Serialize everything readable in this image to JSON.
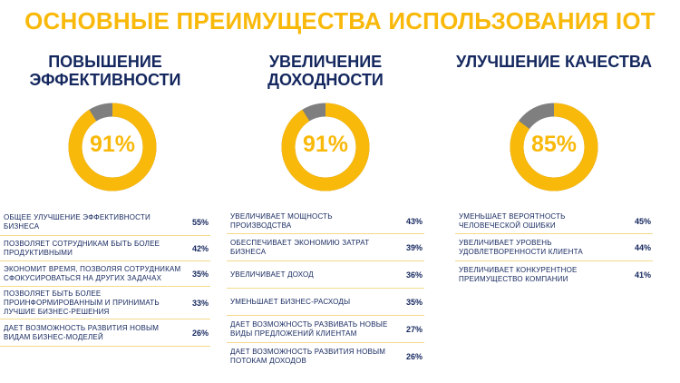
{
  "title": "ОСНОВНЫЕ ПРЕИМУЩЕСТВА ИСПОЛЬЗОВАНИЯ IOT",
  "colors": {
    "accent": "#F9B90B",
    "remainder": "#7F7F7F",
    "text": "#14275E",
    "divider": "#F3D98A"
  },
  "chart_data": [
    {
      "type": "pie",
      "title": "ПОВЫШЕНИЕ ЭФФЕКТИВНОСТИ",
      "value": 91,
      "value_label": "91%",
      "items": [
        {
          "label": "ОБЩЕЕ УЛУЧШЕНИЕ ЭФФЕКТИВНОСТИ БИЗНЕСА",
          "value": 55,
          "pct": "55%"
        },
        {
          "label": "ПОЗВОЛЯЕТ СОТРУДНИКАМ БЫТЬ БОЛЕЕ ПРОДУКТИВНЫМИ",
          "value": 42,
          "pct": "42%"
        },
        {
          "label": "ЭКОНОМИТ ВРЕМЯ, ПОЗВОЛЯЯ СОТРУДНИКАМ СФОКУСИРОВАТЬСЯ НА ДРУГИХ ЗАДАЧАХ",
          "value": 35,
          "pct": "35%"
        },
        {
          "label": "ПОЗВОЛЯЕТ БЫТЬ БОЛЕЕ ПРОИНФОРМИРОВАННЫМ И ПРИНИМАТЬ ЛУЧШИЕ БИЗНЕС-РЕШЕНИЯ",
          "value": 33,
          "pct": "33%"
        },
        {
          "label": "ДАЕТ ВОЗМОЖНОСТЬ РАЗВИТИЯ НОВЫМ ВИДАМ БИЗНЕС-МОДЕЛЕЙ",
          "value": 26,
          "pct": "26%"
        }
      ]
    },
    {
      "type": "pie",
      "title": "УВЕЛИЧЕНИЕ ДОХОДНОСТИ",
      "value": 91,
      "value_label": "91%",
      "items": [
        {
          "label": "УВЕЛИЧИВАЕТ МОЩНОСТЬ ПРОИЗВОДСТВА",
          "value": 43,
          "pct": "43%"
        },
        {
          "label": "ОБЕСПЕЧИВАЕТ ЭКОНОМИЮ ЗАТРАТ БИЗНЕСА",
          "value": 39,
          "pct": "39%"
        },
        {
          "label": "УВЕЛИЧИВАЕТ ДОХОД",
          "value": 36,
          "pct": "36%"
        },
        {
          "label": "УМЕНЬШАЕТ БИЗНЕС-РАСХОДЫ",
          "value": 35,
          "pct": "35%"
        },
        {
          "label": "ДАЕТ ВОЗМОЖНОСТЬ РАЗВИВАТЬ НОВЫЕ ВИДЫ ПРЕДЛОЖЕНИЙ КЛИЕНТАМ",
          "value": 27,
          "pct": "27%"
        },
        {
          "label": "ДАЕТ ВОЗМОЖНОСТЬ РАЗВИТИЯ НОВЫМ ПОТОКАМ ДОХОДОВ",
          "value": 26,
          "pct": "26%"
        }
      ]
    },
    {
      "type": "pie",
      "title": "УЛУЧШЕНИЕ КАЧЕСТВА",
      "value": 85,
      "value_label": "85%",
      "items": [
        {
          "label": "УМЕНЬШАЕТ ВЕРОЯТНОСТЬ ЧЕЛОВЕЧЕСКОЙ ОШИБКИ",
          "value": 45,
          "pct": "45%"
        },
        {
          "label": "УВЕЛИЧИВАЕТ УРОВЕНЬ УДОВЛЕТВОРЕННОСТИ КЛИЕНТА",
          "value": 44,
          "pct": "44%"
        },
        {
          "label": "УВЕЛИЧИВАЕТ КОНКУРЕНТНОЕ ПРЕИМУЩЕСТВО КОМПАНИИ",
          "value": 41,
          "pct": "41%"
        }
      ]
    }
  ]
}
